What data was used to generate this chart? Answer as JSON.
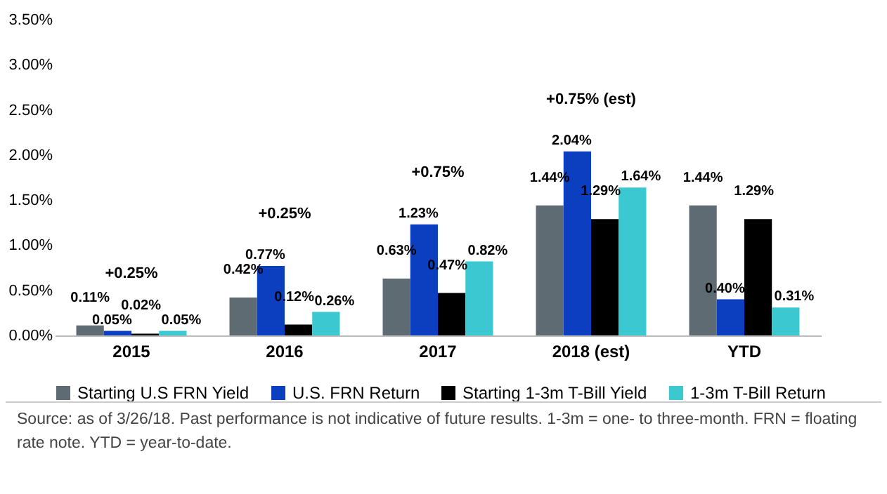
{
  "chart_data": {
    "type": "bar",
    "categories": [
      "2015",
      "2016",
      "2017",
      "2018 (est)",
      "YTD"
    ],
    "series": [
      {
        "name": "Starting U.S FRN Yield",
        "color": "#5f6b73",
        "values": [
          0.11,
          0.42,
          0.63,
          1.44,
          1.44
        ],
        "value_labels": [
          "0.11%",
          "0.42%",
          "0.63%",
          "1.44%",
          "1.44%"
        ]
      },
      {
        "name": "U.S. FRN Return",
        "color": "#0b3fbf",
        "values": [
          0.05,
          0.77,
          1.23,
          2.04,
          0.4
        ],
        "value_labels": [
          "0.05%",
          "0.77%",
          "1.23%",
          "2.04%",
          "0.40%"
        ]
      },
      {
        "name": "Starting 1-3m T-Bill Yield",
        "color": "#000000",
        "values": [
          0.02,
          0.12,
          0.47,
          1.29,
          1.29
        ],
        "value_labels": [
          "0.02%",
          "0.12%",
          "0.47%",
          "1.29%",
          "1.29%"
        ]
      },
      {
        "name": "1-3m T-Bill Return",
        "color": "#3cc8d0",
        "values": [
          0.05,
          0.26,
          0.82,
          1.64,
          0.31
        ],
        "value_labels": [
          "0.05%",
          "0.26%",
          "0.82%",
          "1.64%",
          "0.31%"
        ]
      }
    ],
    "ylim": [
      0,
      3.5
    ],
    "yticks": [
      {
        "value": 0,
        "label": "0.00%"
      },
      {
        "value": 0.5,
        "label": "0.50%"
      },
      {
        "value": 1,
        "label": "1.00%"
      },
      {
        "value": 1.5,
        "label": "1.50%"
      },
      {
        "value": 2,
        "label": "2.00%"
      },
      {
        "value": 2.5,
        "label": "2.50%"
      },
      {
        "value": 3,
        "label": "3.00%"
      },
      {
        "value": 3.5,
        "label": "3.50%"
      }
    ],
    "grid": false,
    "legend": "bottom",
    "annotations": [
      "+0.25%",
      "+0.25%",
      "+0.75%",
      "+0.75% (est)",
      "Source: as of 3/26/18. Past performance is not indicative of future results. 1-3m = one- to three-month. FRN = floating rate note. YTD = year-to-date."
    ]
  }
}
